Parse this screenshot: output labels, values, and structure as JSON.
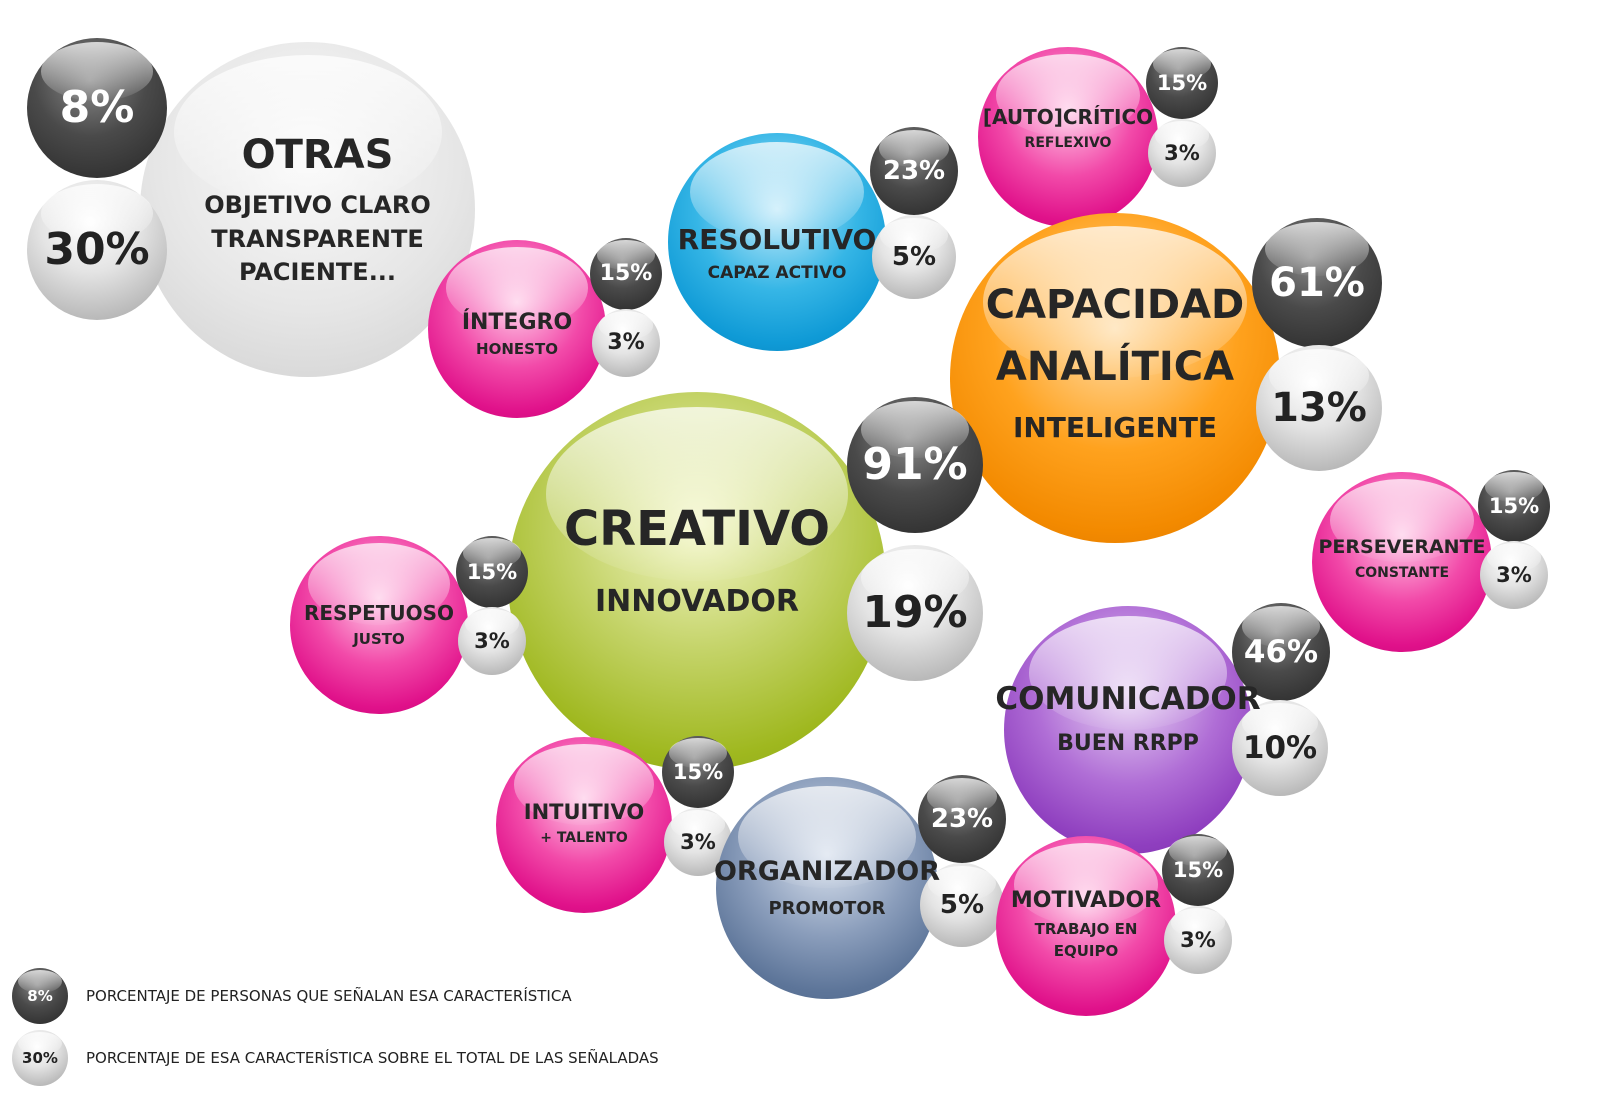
{
  "bubbles": {
    "otras": {
      "label": "OTRAS",
      "sub1": "OBJETIVO CLARO",
      "sub2": "TRANSPARENTE",
      "sub3": "PACIENTE...",
      "pct_people": "8%",
      "pct_total": "30%"
    },
    "integro": {
      "label": "ÍNTEGRO",
      "sub": "HONESTO",
      "pct_people": "15%",
      "pct_total": "3%"
    },
    "resolutivo": {
      "label": "RESOLUTIVO",
      "sub": "CAPAZ ACTIVO",
      "pct_people": "23%",
      "pct_total": "5%"
    },
    "autocritico": {
      "label": "[AUTO]CRÍTICO",
      "sub": "REFLEXIVO",
      "pct_people": "15%",
      "pct_total": "3%"
    },
    "capacidad": {
      "label1": "CAPACIDAD",
      "label2": "ANALÍTICA",
      "sub": "INTELIGENTE",
      "pct_people": "61%",
      "pct_total": "13%"
    },
    "creativo": {
      "label": "CREATIVO",
      "sub": "INNOVADOR",
      "pct_people": "91%",
      "pct_total": "19%"
    },
    "perseverante": {
      "label": "PERSEVERANTE",
      "sub": "CONSTANTE",
      "pct_people": "15%",
      "pct_total": "3%"
    },
    "respetuoso": {
      "label": "RESPETUOSO",
      "sub": "JUSTO",
      "pct_people": "15%",
      "pct_total": "3%"
    },
    "comunicador": {
      "label": "COMUNICADOR",
      "sub": "BUEN RRPP",
      "pct_people": "46%",
      "pct_total": "10%"
    },
    "intuitivo": {
      "label": "INTUITIVO",
      "sub": "+ TALENTO",
      "pct_people": "15%",
      "pct_total": "3%"
    },
    "organizador": {
      "label": "ORGANIZADOR",
      "sub": "PROMOTOR",
      "pct_people": "23%",
      "pct_total": "5%"
    },
    "motivador": {
      "label": "MOTIVADOR",
      "sub1": "TRABAJO EN",
      "sub2": "EQUIPO",
      "pct_people": "15%",
      "pct_total": "3%"
    }
  },
  "legend": {
    "dark": {
      "badge": "8%",
      "text": "PORCENTAJE DE PERSONAS QUE SEÑALAN ESA CARACTERÍSTICA"
    },
    "light": {
      "badge": "30%",
      "text": "PORCENTAJE DE ESA CARACTERÍSTICA SOBRE EL TOTAL DE LAS SEÑALADAS"
    }
  },
  "colors": {
    "pink": "#e0118a",
    "blue": "#0f9ad6",
    "orange": "#f38a00",
    "green": "#9fb81f",
    "purple": "#8f3fbf",
    "slate": "#5d7599",
    "dark_badge": "#3a3a3a",
    "light_badge": "#c8c8c8",
    "otras": "#e6e6e6"
  }
}
